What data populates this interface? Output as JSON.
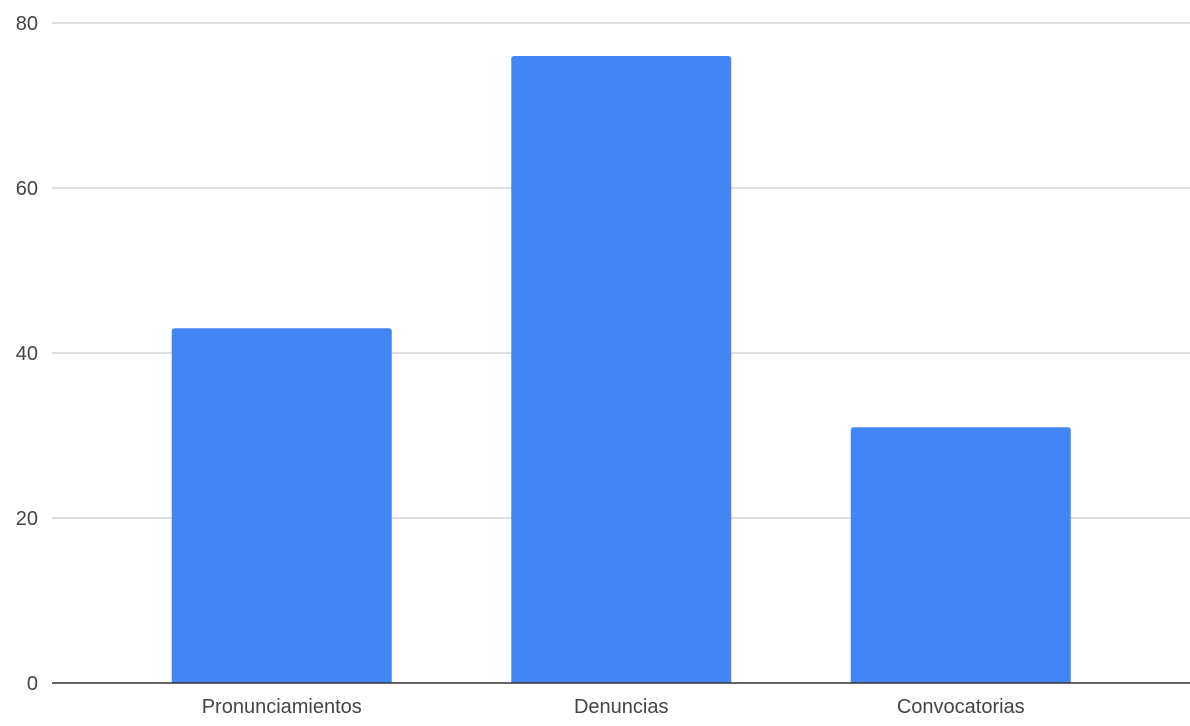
{
  "chart_data": {
    "type": "bar",
    "categories": [
      "Pronunciamientos",
      "Denuncias",
      "Convocatorias"
    ],
    "values": [
      43,
      76,
      31
    ],
    "ylim": [
      0,
      80
    ],
    "yticks": [
      0,
      20,
      40,
      60,
      80
    ],
    "title": "",
    "xlabel": "",
    "ylabel": "",
    "grid": true,
    "legend": "none",
    "colors": {
      "bar": "#4285f4",
      "grid": "#cccccc",
      "axis": "#333333",
      "text": "#444444"
    }
  }
}
